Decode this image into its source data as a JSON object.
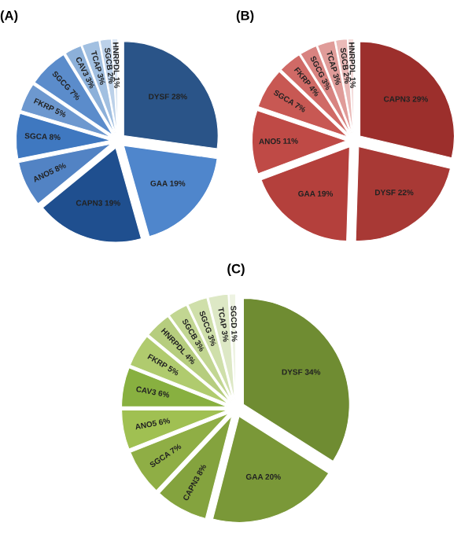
{
  "chart_data": [
    {
      "type": "pie",
      "title": "(A)",
      "categories": [
        "DYSF",
        "GAA",
        "CAPN3",
        "ANO5",
        "SGCA",
        "FKRP",
        "SGCG",
        "CAV3",
        "TCAP",
        "SGCB",
        "HNRPDL"
      ],
      "values": [
        28,
        19,
        19,
        8,
        8,
        5,
        7,
        3,
        3,
        2,
        1
      ],
      "value_labels": [
        "28%",
        "19%",
        "19%",
        "8%",
        "8%",
        "5%",
        "7%",
        "3%",
        "3%",
        "2%",
        "1%"
      ],
      "colors": [
        "#2a5488",
        "#4f86cc",
        "#1f4f8f",
        "#5283c4",
        "#3f78c0",
        "#6d98cf",
        "#5b8ccb",
        "#8cb0d9",
        "#a2c0e1",
        "#bcd1e9",
        "#dbe6f3"
      ]
    },
    {
      "type": "pie",
      "title": "(B)",
      "categories": [
        "CAPN3",
        "DYSF",
        "GAA",
        "ANO5",
        "SGCA",
        "FKRP",
        "SGCG",
        "TCAP",
        "SGCB",
        "HNRPDL"
      ],
      "values": [
        29,
        22,
        19,
        11,
        7,
        4,
        3,
        3,
        2,
        1
      ],
      "value_labels": [
        "29%",
        "22%",
        "19%",
        "11%",
        "7%",
        "4%",
        "3%",
        "3%",
        "2%",
        "1%"
      ],
      "colors": [
        "#9c2f2c",
        "#a83935",
        "#b4403c",
        "#bf4a46",
        "#c85853",
        "#d06a66",
        "#d88380",
        "#e09c99",
        "#eabab8",
        "#f4dcdb"
      ]
    },
    {
      "type": "pie",
      "title": "(C)",
      "categories": [
        "DYSF",
        "GAA",
        "CAPN3",
        "SGCA",
        "ANO5",
        "CAV3",
        "FKRP",
        "HNRPDL",
        "SGCB",
        "SGCG",
        "TCAP",
        "SGCD"
      ],
      "values": [
        34,
        20,
        8,
        7,
        6,
        6,
        5,
        4,
        3,
        3,
        3,
        1
      ],
      "value_labels": [
        "34%",
        "20%",
        "8%",
        "7%",
        "6%",
        "6%",
        "5%",
        "4%",
        "3%",
        "3%",
        "3%",
        "1%"
      ],
      "colors": [
        "#6f8c32",
        "#7a9838",
        "#84a33e",
        "#8fae45",
        "#a0c052",
        "#88b040",
        "#b0cb6e",
        "#b6cd7e",
        "#c2d692",
        "#cfdfaa",
        "#dde8c5",
        "#eef3e2"
      ]
    }
  ]
}
